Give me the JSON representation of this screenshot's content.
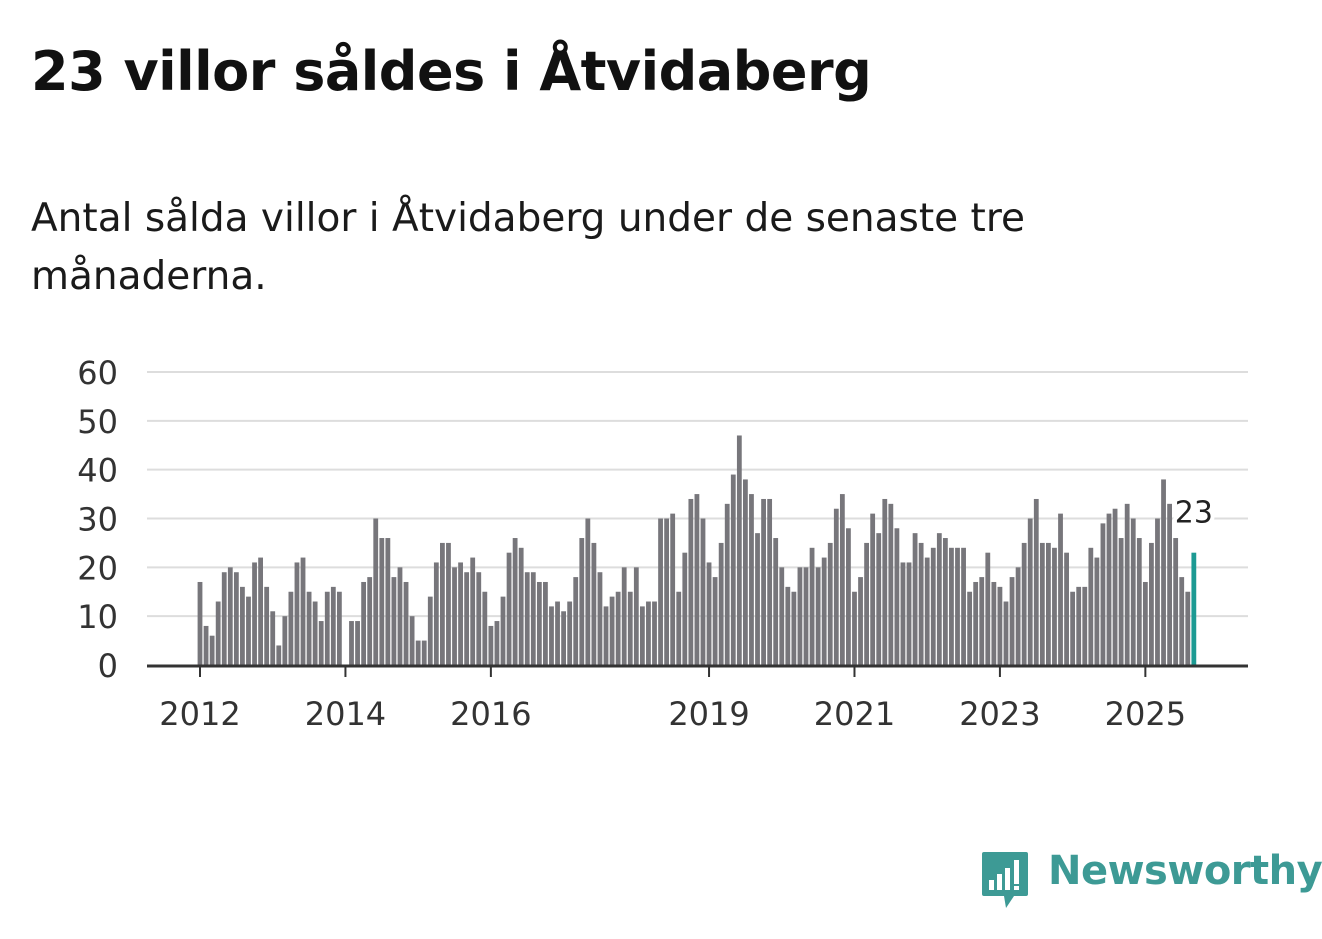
{
  "header": {
    "title": "23 villor såldes i Åtvidaberg",
    "subtitle": "Antal sålda villor i Åtvidaberg under de senaste tre månaderna."
  },
  "brand": {
    "name": "Newsworthy",
    "color": "#3d9a95"
  },
  "colors": {
    "bar": "#77767b",
    "highlight": "#1c9a93",
    "grid": "#dddddd",
    "axis": "#333333",
    "text": "#333333"
  },
  "chart_data": {
    "type": "bar",
    "title": "Antal sålda villor i Åtvidaberg under de senaste tre månaderna.",
    "xlabel": "",
    "ylabel": "",
    "ylim": [
      0,
      60
    ],
    "yticks": [
      0,
      10,
      20,
      30,
      40,
      50,
      60
    ],
    "start": "2012-01",
    "xticks": [
      {
        "label": "2012",
        "index": 0
      },
      {
        "label": "2014",
        "index": 24
      },
      {
        "label": "2016",
        "index": 48
      },
      {
        "label": "2019",
        "index": 84
      },
      {
        "label": "2021",
        "index": 108
      },
      {
        "label": "2023",
        "index": 132
      },
      {
        "label": "2025",
        "index": 156
      }
    ],
    "values": [
      17,
      8,
      6,
      13,
      19,
      20,
      19,
      16,
      14,
      21,
      22,
      16,
      11,
      4,
      10,
      15,
      21,
      22,
      15,
      13,
      9,
      15,
      16,
      15,
      0,
      9,
      9,
      17,
      18,
      30,
      26,
      26,
      18,
      20,
      17,
      10,
      5,
      5,
      14,
      21,
      25,
      25,
      20,
      21,
      19,
      22,
      19,
      15,
      8,
      9,
      14,
      23,
      26,
      24,
      19,
      19,
      17,
      17,
      12,
      13,
      11,
      13,
      18,
      26,
      30,
      25,
      19,
      12,
      14,
      15,
      20,
      15,
      20,
      12,
      13,
      13,
      30,
      30,
      31,
      15,
      23,
      34,
      35,
      30,
      21,
      18,
      25,
      33,
      39,
      47,
      38,
      35,
      27,
      34,
      34,
      26,
      20,
      16,
      15,
      20,
      20,
      24,
      20,
      22,
      25,
      32,
      35,
      28,
      15,
      18,
      25,
      31,
      27,
      34,
      33,
      28,
      21,
      21,
      27,
      25,
      22,
      24,
      27,
      26,
      24,
      24,
      24,
      15,
      17,
      18,
      23,
      17,
      16,
      13,
      18,
      20,
      25,
      30,
      34,
      25,
      25,
      24,
      31,
      23,
      15,
      16,
      16,
      24,
      22,
      29,
      31,
      32,
      26,
      33,
      30,
      26,
      17,
      25,
      30,
      38,
      33,
      26,
      18,
      15,
      23
    ],
    "highlight": {
      "index": 164,
      "value": 23,
      "label": "23"
    }
  }
}
